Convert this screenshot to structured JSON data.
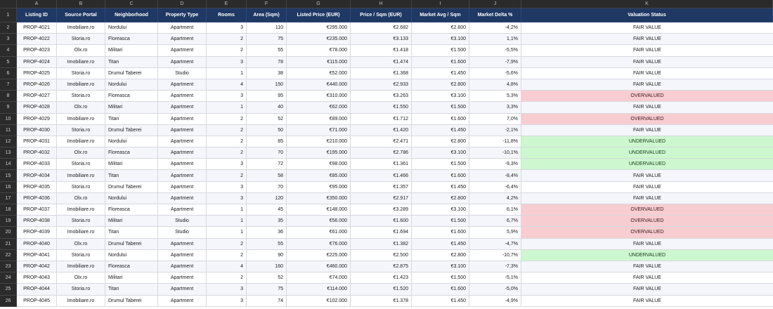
{
  "column_letters": [
    "A",
    "B",
    "C",
    "D",
    "E",
    "F",
    "G",
    "H",
    "I",
    "J",
    "K"
  ],
  "headers": [
    "Listing ID",
    "Source Portal",
    "Neighborhood",
    "Property Type",
    "Rooms",
    "Area (Sqm)",
    "Listed Price (EUR)",
    "Price / Sqm (EUR)",
    "Market Avg / Sqm",
    "Market Delta %",
    "Valuation Status"
  ],
  "header_row_number": "1",
  "rows": [
    {
      "n": "2",
      "id": "PROP-4021",
      "portal": "Imobiliare.ro",
      "hood": "Nordului",
      "type": "Apartment",
      "rooms": "3",
      "area": "110",
      "price": "€295.000",
      "psqm": "€2.682",
      "avg": "€2.800",
      "delta": "-4,2%",
      "status": "FAIR VALUE"
    },
    {
      "n": "3",
      "id": "PROP-4022",
      "portal": "Storia.ro",
      "hood": "Floreasca",
      "type": "Apartment",
      "rooms": "2",
      "area": "75",
      "price": "€235.000",
      "psqm": "€3.133",
      "avg": "€3.100",
      "delta": "1,1%",
      "status": "FAIR VALUE"
    },
    {
      "n": "4",
      "id": "PROP-4023",
      "portal": "Olx.ro",
      "hood": "Militari",
      "type": "Apartment",
      "rooms": "2",
      "area": "55",
      "price": "€78.000",
      "psqm": "€1.418",
      "avg": "€1.500",
      "delta": "-5,5%",
      "status": "FAIR VALUE"
    },
    {
      "n": "5",
      "id": "PROP-4024",
      "portal": "Imobiliare.ro",
      "hood": "Titan",
      "type": "Apartment",
      "rooms": "3",
      "area": "78",
      "price": "€115.000",
      "psqm": "€1.474",
      "avg": "€1.600",
      "delta": "-7,9%",
      "status": "FAIR VALUE"
    },
    {
      "n": "6",
      "id": "PROP-4025",
      "portal": "Storia.ro",
      "hood": "Drumul Taberei",
      "type": "Studio",
      "rooms": "1",
      "area": "38",
      "price": "€52.000",
      "psqm": "€1.368",
      "avg": "€1.450",
      "delta": "-5,6%",
      "status": "FAIR VALUE"
    },
    {
      "n": "7",
      "id": "PROP-4026",
      "portal": "Imobiliare.ro",
      "hood": "Nordului",
      "type": "Apartment",
      "rooms": "4",
      "area": "150",
      "price": "€440.000",
      "psqm": "€2.933",
      "avg": "€2.800",
      "delta": "4,8%",
      "status": "FAIR VALUE"
    },
    {
      "n": "8",
      "id": "PROP-4027",
      "portal": "Storia.ro",
      "hood": "Floreasca",
      "type": "Apartment",
      "rooms": "3",
      "area": "95",
      "price": "€310.000",
      "psqm": "€3.263",
      "avg": "€3.100",
      "delta": "5,3%",
      "status": "OVERVALUED"
    },
    {
      "n": "9",
      "id": "PROP-4028",
      "portal": "Olx.ro",
      "hood": "Militari",
      "type": "Apartment",
      "rooms": "1",
      "area": "40",
      "price": "€62.000",
      "psqm": "€1.550",
      "avg": "€1.500",
      "delta": "3,3%",
      "status": "FAIR VALUE"
    },
    {
      "n": "10",
      "id": "PROP-4029",
      "portal": "Imobiliare.ro",
      "hood": "Titan",
      "type": "Apartment",
      "rooms": "2",
      "area": "52",
      "price": "€89.000",
      "psqm": "€1.712",
      "avg": "€1.600",
      "delta": "7,0%",
      "status": "OVERVALUED"
    },
    {
      "n": "11",
      "id": "PROP-4030",
      "portal": "Storia.ro",
      "hood": "Drumul Taberei",
      "type": "Apartment",
      "rooms": "2",
      "area": "50",
      "price": "€71.000",
      "psqm": "€1.420",
      "avg": "€1.450",
      "delta": "-2,1%",
      "status": "FAIR VALUE"
    },
    {
      "n": "12",
      "id": "PROP-4031",
      "portal": "Imobiliare.ro",
      "hood": "Nordului",
      "type": "Apartment",
      "rooms": "2",
      "area": "85",
      "price": "€210.000",
      "psqm": "€2.471",
      "avg": "€2.800",
      "delta": "-11,8%",
      "status": "UNDERVALUED"
    },
    {
      "n": "13",
      "id": "PROP-4032",
      "portal": "Olx.ro",
      "hood": "Floreasca",
      "type": "Apartment",
      "rooms": "2",
      "area": "70",
      "price": "€195.000",
      "psqm": "€2.786",
      "avg": "€3.100",
      "delta": "-10,1%",
      "status": "UNDERVALUED"
    },
    {
      "n": "14",
      "id": "PROP-4033",
      "portal": "Storia.ro",
      "hood": "Militari",
      "type": "Apartment",
      "rooms": "3",
      "area": "72",
      "price": "€98.000",
      "psqm": "€1.361",
      "avg": "€1.500",
      "delta": "-9,3%",
      "status": "UNDERVALUED"
    },
    {
      "n": "15",
      "id": "PROP-4034",
      "portal": "Imobiliare.ro",
      "hood": "Titan",
      "type": "Apartment",
      "rooms": "2",
      "area": "58",
      "price": "€85.000",
      "psqm": "€1.466",
      "avg": "€1.600",
      "delta": "-8,4%",
      "status": "FAIR VALUE"
    },
    {
      "n": "16",
      "id": "PROP-4035",
      "portal": "Storia.ro",
      "hood": "Drumul Taberei",
      "type": "Apartment",
      "rooms": "3",
      "area": "70",
      "price": "€95.000",
      "psqm": "€1.357",
      "avg": "€1.450",
      "delta": "-6,4%",
      "status": "FAIR VALUE"
    },
    {
      "n": "17",
      "id": "PROP-4036",
      "portal": "Olx.ro",
      "hood": "Nordului",
      "type": "Apartment",
      "rooms": "3",
      "area": "120",
      "price": "€350.000",
      "psqm": "€2.917",
      "avg": "€2.800",
      "delta": "4,2%",
      "status": "FAIR VALUE"
    },
    {
      "n": "18",
      "id": "PROP-4037",
      "portal": "Imobiliare.ro",
      "hood": "Floreasca",
      "type": "Apartment",
      "rooms": "1",
      "area": "45",
      "price": "€148.000",
      "psqm": "€3.289",
      "avg": "€3.100",
      "delta": "6,1%",
      "status": "OVERVALUED"
    },
    {
      "n": "19",
      "id": "PROP-4038",
      "portal": "Storia.ro",
      "hood": "Militari",
      "type": "Studio",
      "rooms": "1",
      "area": "35",
      "price": "€56.000",
      "psqm": "€1.600",
      "avg": "€1.500",
      "delta": "6,7%",
      "status": "OVERVALUED"
    },
    {
      "n": "20",
      "id": "PROP-4039",
      "portal": "Imobiliare.ro",
      "hood": "Titan",
      "type": "Studio",
      "rooms": "1",
      "area": "36",
      "price": "€61.000",
      "psqm": "€1.694",
      "avg": "€1.600",
      "delta": "5,9%",
      "status": "OVERVALUED"
    },
    {
      "n": "21",
      "id": "PROP-4040",
      "portal": "Olx.ro",
      "hood": "Drumul Taberei",
      "type": "Apartment",
      "rooms": "2",
      "area": "55",
      "price": "€76.000",
      "psqm": "€1.382",
      "avg": "€1.450",
      "delta": "-4,7%",
      "status": "FAIR VALUE"
    },
    {
      "n": "22",
      "id": "PROP-4041",
      "portal": "Storia.ro",
      "hood": "Nordului",
      "type": "Apartment",
      "rooms": "2",
      "area": "90",
      "price": "€225.000",
      "psqm": "€2.500",
      "avg": "€2.800",
      "delta": "-10,7%",
      "status": "UNDERVALUED"
    },
    {
      "n": "23",
      "id": "PROP-4042",
      "portal": "Imobiliare.ro",
      "hood": "Floreasca",
      "type": "Apartment",
      "rooms": "4",
      "area": "160",
      "price": "€460.000",
      "psqm": "€2.875",
      "avg": "€3.100",
      "delta": "-7,3%",
      "status": "FAIR VALUE"
    },
    {
      "n": "24",
      "id": "PROP-4043",
      "portal": "Olx.ro",
      "hood": "Militari",
      "type": "Apartment",
      "rooms": "2",
      "area": "52",
      "price": "€74.000",
      "psqm": "€1.423",
      "avg": "€1.500",
      "delta": "-5,1%",
      "status": "FAIR VALUE"
    },
    {
      "n": "25",
      "id": "PROP-4044",
      "portal": "Storia.ro",
      "hood": "Titan",
      "type": "Apartment",
      "rooms": "3",
      "area": "75",
      "price": "€114.000",
      "psqm": "€1.520",
      "avg": "€1.600",
      "delta": "-5,0%",
      "status": "FAIR VALUE"
    },
    {
      "n": "26",
      "id": "PROP-4045",
      "portal": "Imobiliare.ro",
      "hood": "Drumul Taberei",
      "type": "Apartment",
      "rooms": "3",
      "area": "74",
      "price": "€102.000",
      "psqm": "€1.378",
      "avg": "€1.450",
      "delta": "-4,9%",
      "status": "FAIR VALUE"
    }
  ],
  "colors": {
    "header_bg": "#1f3864",
    "overvalued_bg": "#f8cdd2",
    "undervalued_bg": "#cdf7cf"
  }
}
